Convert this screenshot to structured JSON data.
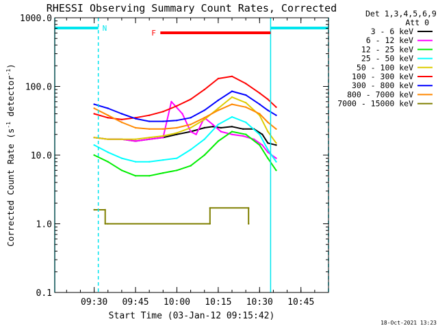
{
  "chart_data": {
    "type": "line",
    "title": "RHESSI Observing Summary Count Rates, Corrected",
    "xlabel": "Start Time (03-Jan-12 09:15:42)",
    "ylabel": "Corrected Count Rate (s⁻¹ detector⁻¹)",
    "ylabel_main": "Corrected Count Rate (s",
    "ylabel_sup1": "-1",
    "ylabel_mid": " detector",
    "ylabel_sup2": "-1",
    "ylabel_end": ")",
    "xlim": [
      "09:15:42",
      "10:55:00"
    ],
    "ylim": [
      0.1,
      1000
    ],
    "yscale": "log",
    "xticks": [
      "09:30",
      "09:45",
      "10:00",
      "10:15",
      "10:30",
      "10:45"
    ],
    "yticks": [
      "0.1",
      "1.0",
      "10.0",
      "100.0",
      "1000.0"
    ],
    "grid": false,
    "detector_info": "Det 1,3,4,5,6,9,",
    "attenuator": "Att 0",
    "timestamp": "18-Oct-2021 13:23",
    "flags": [
      {
        "label": "N",
        "color": "#00e5ee",
        "start": "09:15:42",
        "end": "09:31:30"
      },
      {
        "label": "N",
        "color": "#00e5ee",
        "start": "10:34:00",
        "end": "10:55:00"
      },
      {
        "label": "F",
        "color": "#ff0000",
        "start": "09:54:00",
        "end": "10:34:00"
      }
    ],
    "night_lines": [
      "09:15:42",
      "09:31:30",
      "10:34:00",
      "10:55:00"
    ],
    "legend": [
      {
        "name": "3 - 6 keV",
        "color": "#000000"
      },
      {
        "name": "6 - 12 keV",
        "color": "#ff00ff"
      },
      {
        "name": "12 - 25 keV",
        "color": "#00ee00"
      },
      {
        "name": "25 - 50 keV",
        "color": "#00ffff"
      },
      {
        "name": "50 - 100 keV",
        "color": "#ddcc00"
      },
      {
        "name": "100 - 300 keV",
        "color": "#ff0000"
      },
      {
        "name": "300 - 800 keV",
        "color": "#0000ff"
      },
      {
        "name": "800 - 7000 keV",
        "color": "#ff8800"
      },
      {
        "name": "7000 - 15000 keV",
        "color": "#7f7f00"
      }
    ],
    "series": [
      {
        "name": "3 - 6 keV",
        "color": "#000000",
        "x": [
          "09:30",
          "09:35",
          "09:40",
          "09:45",
          "09:50",
          "09:55",
          "10:00",
          "10:05",
          "10:10",
          "10:13",
          "10:16",
          "10:20",
          "10:24",
          "10:28",
          "10:31",
          "10:33",
          "10:36"
        ],
        "y": [
          18,
          17,
          17,
          16,
          17,
          18,
          20,
          22,
          25,
          26,
          25,
          26,
          24,
          24,
          20,
          15,
          14
        ]
      },
      {
        "name": "6 - 12 keV",
        "color": "#ff00ff",
        "x": [
          "09:30",
          "09:35",
          "09:40",
          "09:45",
          "09:50",
          "09:55",
          "09:58",
          "10:02",
          "10:05",
          "10:07",
          "10:10",
          "10:13",
          "10:16",
          "10:20",
          "10:24",
          "10:28",
          "10:31",
          "10:33",
          "10:36"
        ],
        "y": [
          18,
          17,
          17,
          16,
          17,
          18,
          60,
          40,
          22,
          20,
          35,
          28,
          22,
          20,
          19,
          17,
          14,
          11,
          9
        ]
      },
      {
        "name": "12 - 25 keV",
        "color": "#00ee00",
        "x": [
          "09:30",
          "09:35",
          "09:40",
          "09:45",
          "09:50",
          "09:55",
          "10:00",
          "10:05",
          "10:10",
          "10:15",
          "10:20",
          "10:25",
          "10:30",
          "10:33",
          "10:36"
        ],
        "y": [
          10,
          8,
          6,
          5,
          5,
          5.5,
          6,
          7,
          10,
          16,
          22,
          20,
          14,
          9,
          6
        ]
      },
      {
        "name": "25 - 50 keV",
        "color": "#00ffff",
        "x": [
          "09:30",
          "09:35",
          "09:40",
          "09:45",
          "09:50",
          "09:55",
          "10:00",
          "10:05",
          "10:10",
          "10:15",
          "10:20",
          "10:25",
          "10:30",
          "10:33",
          "10:36"
        ],
        "y": [
          14,
          11,
          9,
          8,
          8,
          8.5,
          9,
          12,
          17,
          28,
          36,
          30,
          20,
          12,
          8
        ]
      },
      {
        "name": "50 - 100 keV",
        "color": "#ddcc00",
        "x": [
          "09:30",
          "09:35",
          "09:40",
          "09:45",
          "09:50",
          "09:55",
          "10:00",
          "10:05",
          "10:10",
          "10:15",
          "10:20",
          "10:25",
          "10:30",
          "10:33",
          "10:36"
        ],
        "y": [
          18,
          17,
          17,
          17,
          18,
          19,
          21,
          25,
          33,
          48,
          70,
          58,
          38,
          22,
          15
        ]
      },
      {
        "name": "100 - 300 keV",
        "color": "#ff0000",
        "x": [
          "09:30",
          "09:35",
          "09:40",
          "09:45",
          "09:50",
          "09:55",
          "10:00",
          "10:05",
          "10:10",
          "10:15",
          "10:20",
          "10:25",
          "10:30",
          "10:33",
          "10:36"
        ],
        "y": [
          40,
          35,
          33,
          35,
          38,
          43,
          52,
          65,
          90,
          130,
          140,
          110,
          80,
          65,
          50
        ]
      },
      {
        "name": "300 - 800 keV",
        "color": "#0000ff",
        "x": [
          "09:30",
          "09:35",
          "09:40",
          "09:45",
          "09:50",
          "09:55",
          "10:00",
          "10:05",
          "10:10",
          "10:15",
          "10:20",
          "10:25",
          "10:30",
          "10:33",
          "10:36"
        ],
        "y": [
          55,
          48,
          40,
          34,
          31,
          31,
          32,
          35,
          45,
          63,
          85,
          75,
          55,
          45,
          38
        ]
      },
      {
        "name": "800 - 7000 keV",
        "color": "#ff8800",
        "x": [
          "09:30",
          "09:35",
          "09:40",
          "09:45",
          "09:50",
          "09:55",
          "10:00",
          "10:05",
          "10:10",
          "10:15",
          "10:20",
          "10:25",
          "10:30",
          "10:33",
          "10:36"
        ],
        "y": [
          48,
          38,
          30,
          25,
          24,
          24,
          25,
          28,
          35,
          45,
          55,
          50,
          40,
          30,
          24
        ]
      },
      {
        "name": "7000 - 15000 keV",
        "color": "#7f7f00",
        "x": [
          "09:30",
          "09:34",
          "09:34",
          "09:35",
          "10:12",
          "10:12",
          "10:26",
          "10:26"
        ],
        "y": [
          1.6,
          1.6,
          1.0,
          1.0,
          1.0,
          1.7,
          1.7,
          1.0
        ]
      }
    ]
  }
}
